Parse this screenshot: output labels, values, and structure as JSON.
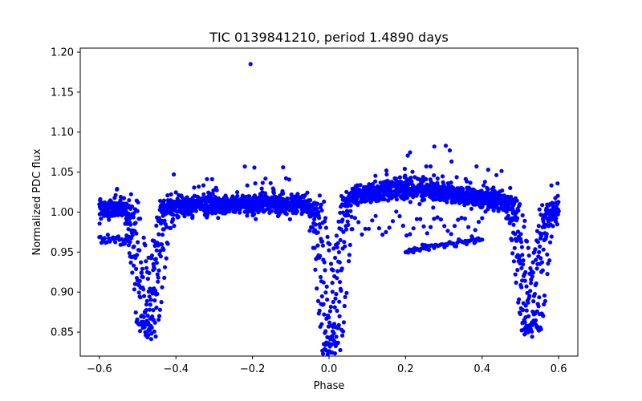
{
  "chart_data": {
    "type": "scatter",
    "title": "TIC 0139841210, period 1.4890 days",
    "xlabel": "Phase",
    "ylabel": "Normalized PDC flux",
    "xlim": [
      -0.65,
      0.65
    ],
    "ylim": [
      0.82,
      1.205
    ],
    "xticks": [
      -0.6,
      -0.4,
      -0.2,
      0.0,
      0.2,
      0.4,
      0.6
    ],
    "xtick_labels": [
      "−0.6",
      "−0.4",
      "−0.2",
      "0.0",
      "0.2",
      "0.4",
      "0.6"
    ],
    "yticks": [
      0.85,
      0.9,
      0.95,
      1.0,
      1.05,
      1.1,
      1.15,
      1.2
    ],
    "ytick_labels": [
      "0.85",
      "0.90",
      "0.95",
      "1.00",
      "1.05",
      "1.10",
      "1.15",
      "1.20"
    ],
    "grid": false,
    "marker_color": "#0000ff",
    "phase_range": [
      -0.6,
      0.6
    ],
    "primary_eclipse": {
      "center": 0.0,
      "depth_min": 0.832,
      "baseline": 1.01
    },
    "secondary_eclipse": {
      "centers": [
        -0.48,
        0.52
      ],
      "depth_min": 0.858,
      "baseline": 1.01
    },
    "baseline_segments": [
      {
        "x": [
          -0.6,
          -0.52
        ],
        "y": [
          1.01,
          1.01
        ]
      },
      {
        "x": [
          -0.44,
          -0.02
        ],
        "y": [
          1.005,
          1.005
        ]
      },
      {
        "x": [
          0.04,
          0.48
        ],
        "y": [
          1.01,
          1.02
        ]
      },
      {
        "x": [
          0.55,
          0.6
        ],
        "y": [
          1.0,
          1.0
        ]
      }
    ],
    "highlighted_points": [
      {
        "x": -0.205,
        "y": 1.185
      },
      {
        "x": 0.275,
        "y": 1.082
      },
      {
        "x": 0.305,
        "y": 1.083
      },
      {
        "x": -0.22,
        "y": 1.057
      },
      {
        "x": -0.12,
        "y": 1.056
      },
      {
        "x": 0.15,
        "y": 1.052
      },
      {
        "x": 0.21,
        "y": 0.951
      },
      {
        "x": 0.57,
        "y": 0.947
      }
    ]
  }
}
